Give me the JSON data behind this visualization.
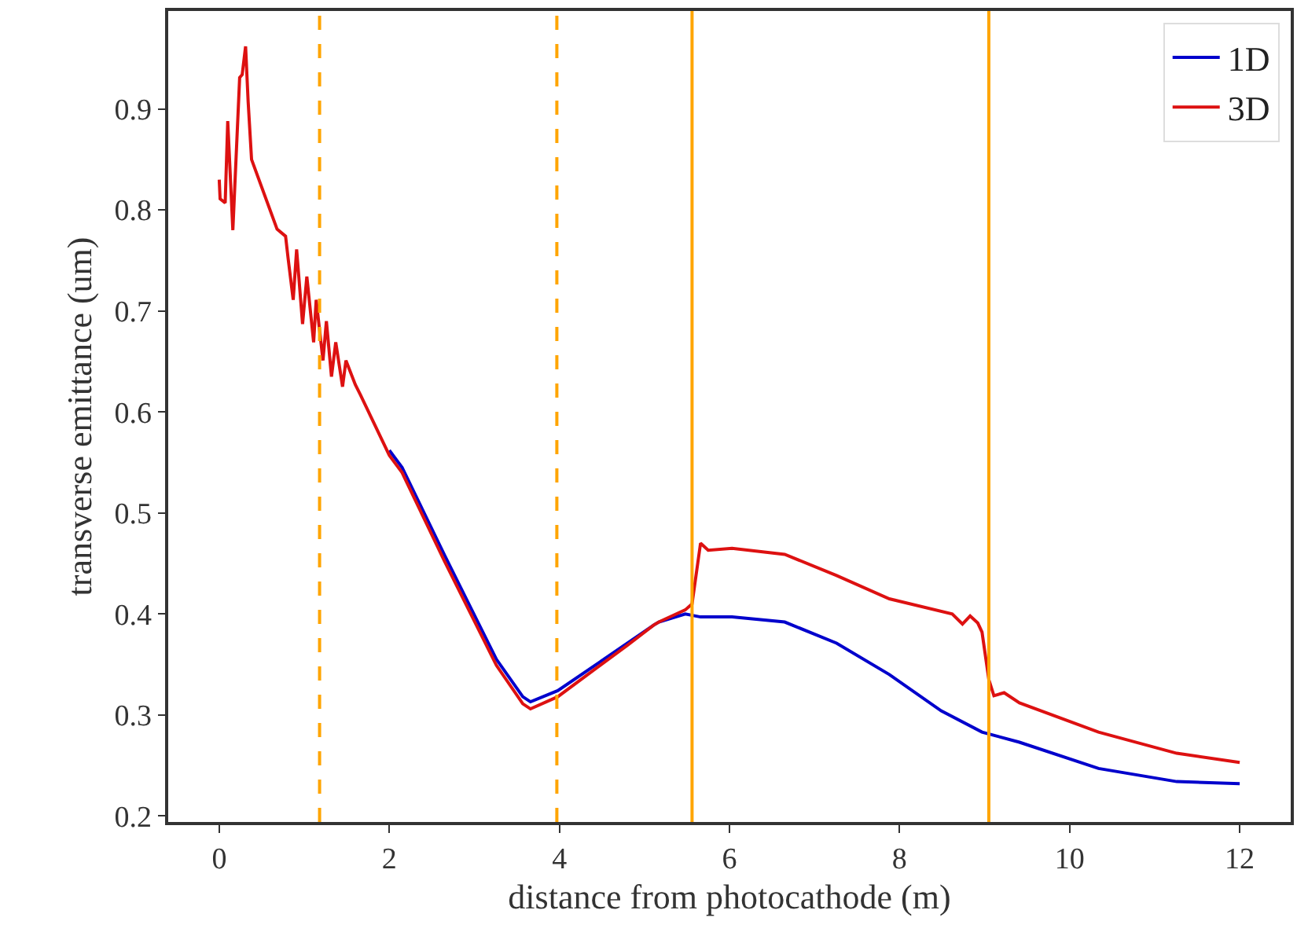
{
  "chart_data": {
    "type": "line",
    "xlabel": "distance from photocathode (m)",
    "ylabel": "transverse emittance (um)",
    "xlim": [
      -0.6,
      12.6
    ],
    "ylim": [
      0.194,
      0.997
    ],
    "xticks": [
      0,
      2,
      4,
      6,
      8,
      10,
      12
    ],
    "yticks": [
      0.2,
      0.3,
      0.4,
      0.5,
      0.6,
      0.7,
      0.8,
      0.9
    ],
    "legend": "top right",
    "line_style": "solid",
    "marker": "none",
    "series": [
      {
        "name": "1D",
        "color": "#0000cc",
        "x": [
          2.0,
          2.15,
          2.65,
          3.26,
          3.57,
          3.66,
          3.98,
          4.8,
          5.11,
          5.17,
          5.48,
          5.66,
          6.03,
          6.65,
          7.26,
          7.88,
          8.49,
          8.97,
          9.41,
          10.34,
          11.26,
          12.0
        ],
        "values": [
          0.562,
          0.545,
          0.458,
          0.355,
          0.318,
          0.313,
          0.324,
          0.371,
          0.389,
          0.392,
          0.4,
          0.397,
          0.397,
          0.392,
          0.371,
          0.34,
          0.304,
          0.283,
          0.273,
          0.247,
          0.234,
          0.232
        ]
      },
      {
        "name": "3D",
        "color": "#dd1111",
        "x": [
          0,
          0.01,
          0.07,
          0.1,
          0.16,
          0.24,
          0.27,
          0.31,
          0.34,
          0.38,
          0.68,
          0.78,
          0.81,
          0.87,
          0.91,
          0.98,
          1.03,
          1.11,
          1.14,
          1.22,
          1.26,
          1.32,
          1.37,
          1.45,
          1.49,
          1.6,
          1.66,
          2.0,
          2.15,
          2.65,
          3.26,
          3.57,
          3.66,
          3.98,
          4.8,
          5.11,
          5.17,
          5.48,
          5.56,
          5.66,
          5.75,
          6.03,
          6.65,
          7.26,
          7.88,
          8.62,
          8.74,
          8.83,
          8.92,
          8.97,
          9.05,
          9.11,
          9.23,
          9.41,
          10.34,
          11.26,
          12.0
        ],
        "values": [
          0.83,
          0.811,
          0.807,
          0.888,
          0.78,
          0.931,
          0.934,
          0.962,
          0.907,
          0.85,
          0.781,
          0.774,
          0.752,
          0.711,
          0.761,
          0.687,
          0.734,
          0.669,
          0.711,
          0.651,
          0.69,
          0.635,
          0.669,
          0.625,
          0.651,
          0.627,
          0.617,
          0.557,
          0.54,
          0.452,
          0.349,
          0.311,
          0.306,
          0.318,
          0.369,
          0.389,
          0.392,
          0.404,
          0.41,
          0.47,
          0.463,
          0.465,
          0.459,
          0.438,
          0.415,
          0.4,
          0.39,
          0.398,
          0.391,
          0.382,
          0.335,
          0.319,
          0.322,
          0.312,
          0.283,
          0.262,
          0.253
        ]
      }
    ],
    "ref_lines": [
      {
        "axis": "x",
        "value": 1.18,
        "color": "#ffa500",
        "line_style": "dashed"
      },
      {
        "axis": "x",
        "value": 3.97,
        "color": "#ffa500",
        "line_style": "dashed"
      },
      {
        "axis": "x",
        "value": 5.56,
        "color": "#ffa500",
        "line_style": "solid"
      },
      {
        "axis": "x",
        "value": 9.05,
        "color": "#ffa500",
        "line_style": "solid"
      }
    ]
  }
}
